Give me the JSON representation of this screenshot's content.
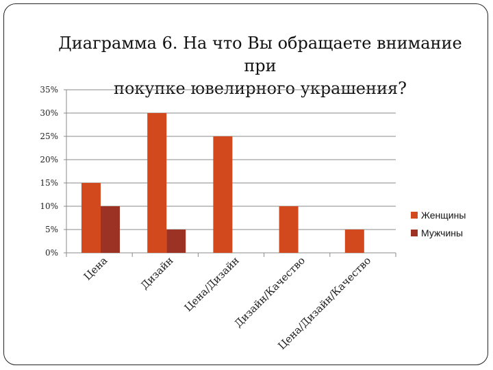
{
  "chart_data": {
    "type": "bar",
    "title_line1": "Диаграмма 6. На что Вы обращаете внимание при",
    "title_line2": "покупке ювелирного украшения?",
    "categories": [
      "Цена",
      "Дизайн",
      "Цена/Дизайн",
      "Дизайн/Качество",
      "Цена/Дизайн/Качество"
    ],
    "series": [
      {
        "name": "Женщины",
        "values": [
          15,
          30,
          25,
          10,
          5
        ],
        "color": "#d1491c"
      },
      {
        "name": "Мужчины",
        "values": [
          10,
          5,
          0,
          0,
          0
        ],
        "color": "#9c3223"
      }
    ],
    "y_ticks": [
      "0%",
      "5%",
      "10%",
      "15%",
      "20%",
      "25%",
      "30%",
      "35%"
    ],
    "ylim": [
      0,
      35
    ],
    "y_unit": "%",
    "grid": true,
    "legend_position": "right"
  }
}
